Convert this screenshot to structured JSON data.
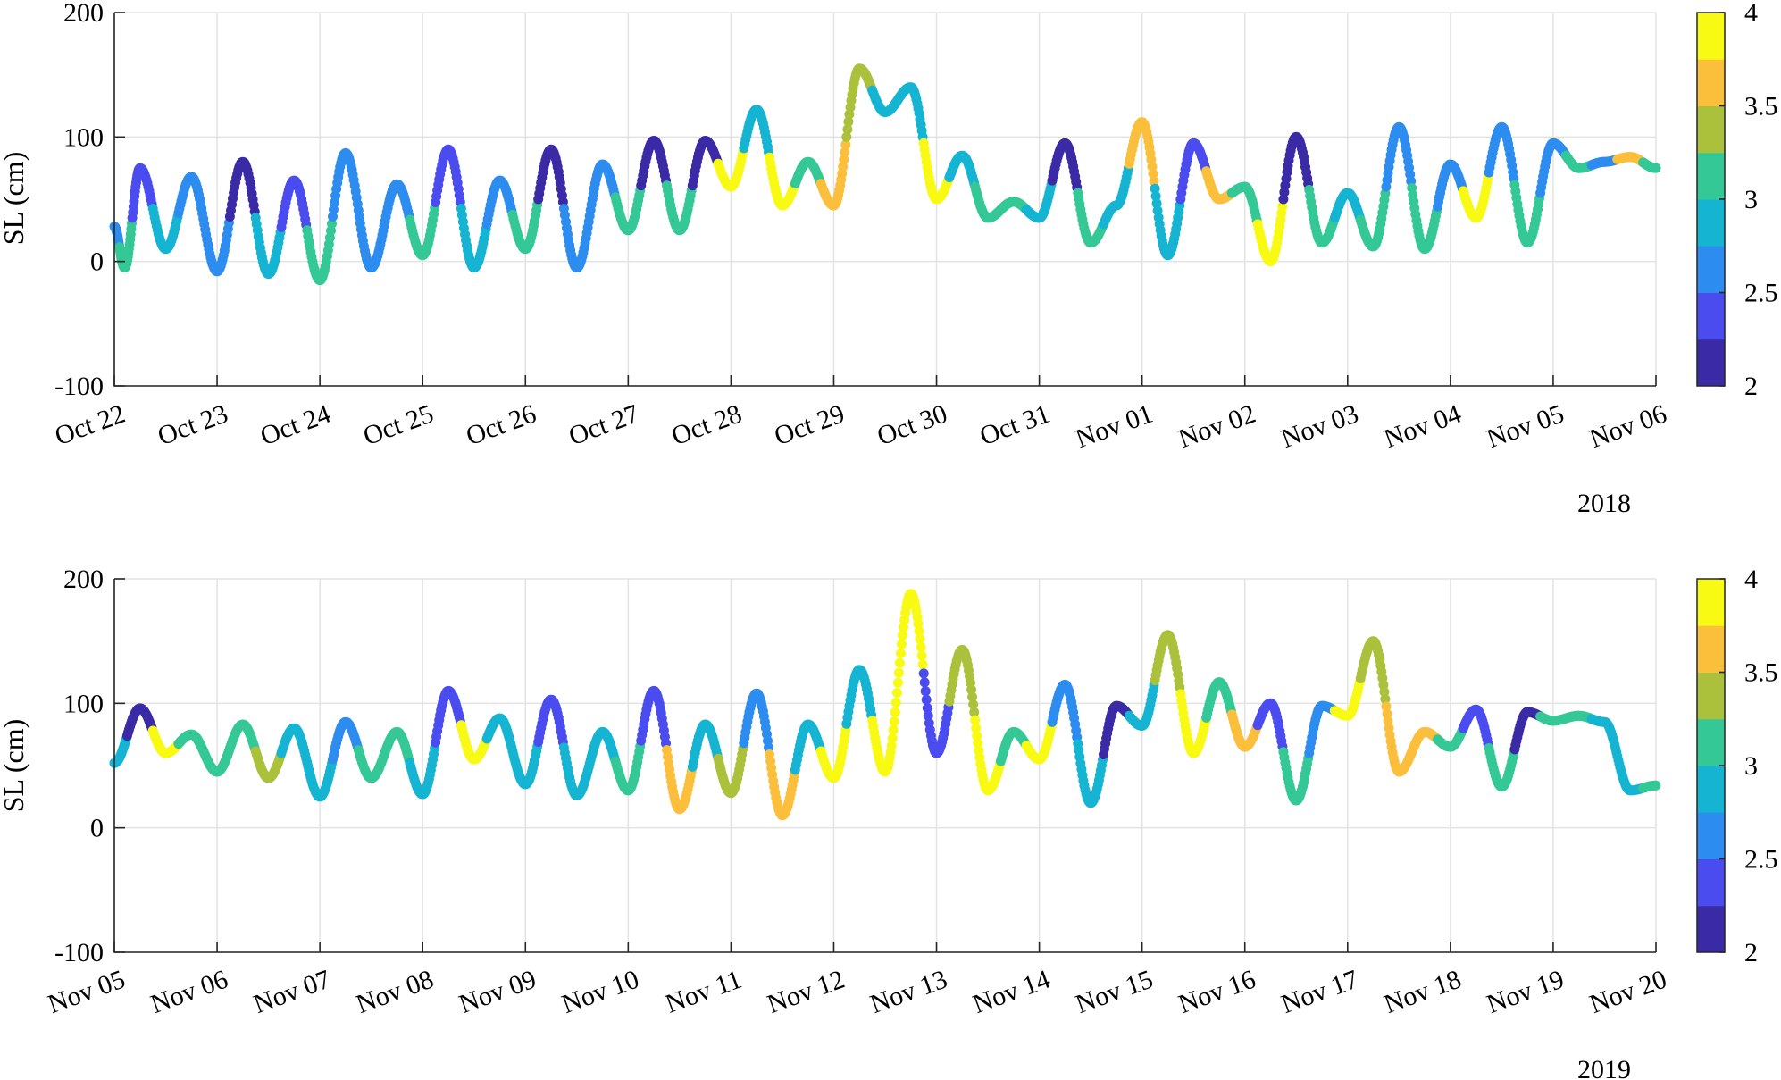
{
  "colormap": [
    "#3a2aa6",
    "#4a4cf0",
    "#2d8cf0",
    "#14b4d2",
    "#34c896",
    "#abc13c",
    "#fbbf3c",
    "#f9fa13"
  ],
  "color_range": [
    2,
    4
  ],
  "colorbar_ticks": [
    "2",
    "2.5",
    "3",
    "3.5",
    "4"
  ],
  "chart_data": [
    {
      "type": "scatter",
      "title": "",
      "xlabel": "",
      "ylabel": "SL (cm)",
      "ylim": [
        -100,
        200
      ],
      "yticks": [
        "-100",
        "0",
        "100",
        "200"
      ],
      "year_label": "2018",
      "date_ticks": [
        "Oct 22",
        "Oct 23",
        "Oct 24",
        "Oct 25",
        "Oct 26",
        "Oct 27",
        "Oct 28",
        "Oct 29",
        "Oct 30",
        "Oct 31",
        "Nov 01",
        "Nov 02",
        "Nov 03",
        "Nov 04",
        "Nov 05",
        "Nov 06"
      ],
      "grid": true,
      "colorbar": {
        "label": "",
        "range": [
          2,
          4
        ]
      },
      "x": [
        0,
        0.1,
        0.25,
        0.5,
        0.75,
        1.0,
        1.25,
        1.5,
        1.75,
        2.0,
        2.25,
        2.5,
        2.75,
        3.0,
        3.25,
        3.5,
        3.75,
        4.0,
        4.25,
        4.5,
        4.75,
        5.0,
        5.25,
        5.5,
        5.75,
        6.0,
        6.25,
        6.5,
        6.75,
        7.0,
        7.25,
        7.5,
        7.75,
        8.0,
        8.25,
        8.5,
        8.75,
        9.0,
        9.25,
        9.5,
        9.75,
        10.0,
        10.25,
        10.5,
        10.75,
        11.0,
        11.25,
        11.5,
        11.75,
        12.0,
        12.25,
        12.5,
        12.75,
        13.0,
        13.25,
        13.5,
        13.75,
        14.0,
        14.25,
        14.5,
        14.75,
        15.0
      ],
      "y": [
        28,
        -5,
        75,
        10,
        68,
        -8,
        80,
        -10,
        65,
        -15,
        87,
        -5,
        62,
        5,
        90,
        -5,
        65,
        10,
        90,
        -5,
        78,
        25,
        97,
        25,
        97,
        60,
        122,
        45,
        80,
        45,
        155,
        120,
        140,
        50,
        85,
        35,
        48,
        35,
        95,
        15,
        45,
        112,
        5,
        95,
        50,
        60,
        0,
        100,
        15,
        55,
        12,
        108,
        10,
        78,
        35,
        108,
        15,
        95,
        75,
        80,
        84,
        75
      ],
      "color": [
        2.6,
        3.0,
        2.3,
        2.9,
        2.5,
        2.6,
        2.2,
        2.9,
        2.4,
        3.0,
        2.5,
        2.7,
        2.6,
        3.2,
        2.3,
        2.8,
        2.6,
        3.0,
        2.2,
        2.7,
        2.6,
        3.2,
        2.2,
        3.1,
        2.2,
        4.0,
        2.8,
        3.9,
        3.1,
        3.7,
        3.4,
        2.9,
        2.9,
        3.8,
        2.8,
        3.0,
        3.1,
        2.9,
        2.2,
        3.0,
        2.9,
        3.6,
        2.9,
        2.3,
        3.5,
        3.0,
        3.9,
        2.2,
        3.1,
        2.8,
        3.0,
        2.6,
        3.0,
        2.6,
        3.8,
        2.5,
        3.0,
        2.7,
        3.0,
        2.6,
        3.6,
        3.0
      ]
    },
    {
      "type": "scatter",
      "title": "",
      "xlabel": "",
      "ylabel": "SL (cm)",
      "ylim": [
        -100,
        200
      ],
      "yticks": [
        "-100",
        "0",
        "100",
        "200"
      ],
      "year_label": "2019",
      "date_ticks": [
        "Nov 05",
        "Nov 06",
        "Nov 07",
        "Nov 08",
        "Nov 09",
        "Nov 10",
        "Nov 11",
        "Nov 12",
        "Nov 13",
        "Nov 14",
        "Nov 15",
        "Nov 16",
        "Nov 17",
        "Nov 18",
        "Nov 19",
        "Nov 20"
      ],
      "grid": true,
      "colorbar": {
        "label": "",
        "range": [
          2,
          4
        ]
      },
      "x": [
        0,
        0.25,
        0.5,
        0.75,
        1.0,
        1.25,
        1.5,
        1.75,
        2.0,
        2.25,
        2.5,
        2.75,
        3.0,
        3.25,
        3.5,
        3.75,
        4.0,
        4.25,
        4.5,
        4.75,
        5.0,
        5.25,
        5.5,
        5.75,
        6.0,
        6.25,
        6.5,
        6.75,
        7.0,
        7.25,
        7.5,
        7.75,
        8.0,
        8.25,
        8.5,
        8.75,
        9.0,
        9.25,
        9.5,
        9.75,
        10.0,
        10.25,
        10.5,
        10.75,
        11.0,
        11.25,
        11.5,
        11.75,
        12.0,
        12.25,
        12.5,
        12.75,
        13.0,
        13.25,
        13.5,
        13.75,
        14.0,
        14.25,
        14.5,
        14.75,
        15.0
      ],
      "y": [
        52,
        96,
        60,
        75,
        45,
        83,
        40,
        80,
        25,
        85,
        40,
        77,
        27,
        110,
        55,
        88,
        35,
        103,
        26,
        77,
        30,
        110,
        15,
        83,
        28,
        108,
        10,
        83,
        40,
        127,
        45,
        188,
        60,
        143,
        30,
        77,
        55,
        115,
        20,
        98,
        82,
        155,
        60,
        117,
        65,
        100,
        22,
        98,
        90,
        150,
        45,
        77,
        65,
        95,
        33,
        93,
        86,
        90,
        85,
        30,
        34
      ],
      "color": [
        2.9,
        2.2,
        3.8,
        3.0,
        3.0,
        3.1,
        3.3,
        2.9,
        2.9,
        2.7,
        3.2,
        3.0,
        2.8,
        2.4,
        3.9,
        2.9,
        2.9,
        2.3,
        2.9,
        2.9,
        3.2,
        2.4,
        3.5,
        2.9,
        3.4,
        2.7,
        3.6,
        2.9,
        3.8,
        2.9,
        4.0,
        4.0,
        2.4,
        3.3,
        3.8,
        3.2,
        3.9,
        2.7,
        2.9,
        2.2,
        2.9,
        3.4,
        4.0,
        3.0,
        3.7,
        2.3,
        3.0,
        2.6,
        3.9,
        3.3,
        3.5,
        3.6,
        3.0,
        2.3,
        3.2,
        2.2,
        3.0,
        3.0,
        2.9,
        2.8,
        3.2
      ]
    }
  ]
}
